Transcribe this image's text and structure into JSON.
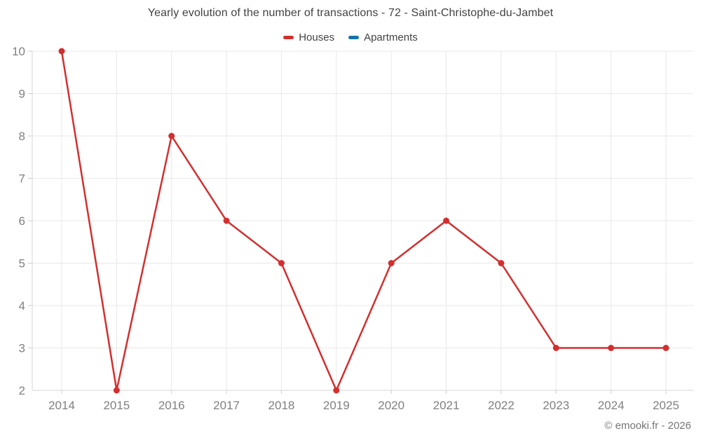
{
  "header": {
    "title": "Yearly evolution of the number of transactions - 72 - Saint-Christophe-du-Jambet"
  },
  "legend": {
    "items": [
      {
        "label": "Houses",
        "color": "#d32f2f"
      },
      {
        "label": "Apartments",
        "color": "#1573a6"
      }
    ]
  },
  "footer": {
    "credit": "© emooki.fr - 2026"
  },
  "colors": {
    "grid": "#e8e8e8",
    "axis": "#d4d4d4",
    "tick": "#cccccc",
    "axis_label": "#808080",
    "title_text": "#424242",
    "background": "#ffffff"
  },
  "chart_data": {
    "type": "line",
    "title": "Yearly evolution of the number of transactions - 72 - Saint-Christophe-du-Jambet",
    "categories": [
      "2014",
      "2015",
      "2016",
      "2017",
      "2018",
      "2019",
      "2020",
      "2021",
      "2022",
      "2023",
      "2024",
      "2025"
    ],
    "series": [
      {
        "name": "Houses",
        "color": "#d32f2f",
        "values": [
          10,
          2,
          8,
          6,
          5,
          2,
          5,
          6,
          5,
          3,
          3,
          3
        ]
      },
      {
        "name": "Apartments",
        "color": "#1573a6",
        "values": []
      }
    ],
    "xlabel": "",
    "ylabel": "",
    "ylim": [
      2,
      10
    ],
    "yticks": [
      2,
      3,
      4,
      5,
      6,
      7,
      8,
      9,
      10
    ],
    "grid": true,
    "legend_position": "top",
    "marker": "circle",
    "annotation": "© emooki.fr - 2026"
  }
}
